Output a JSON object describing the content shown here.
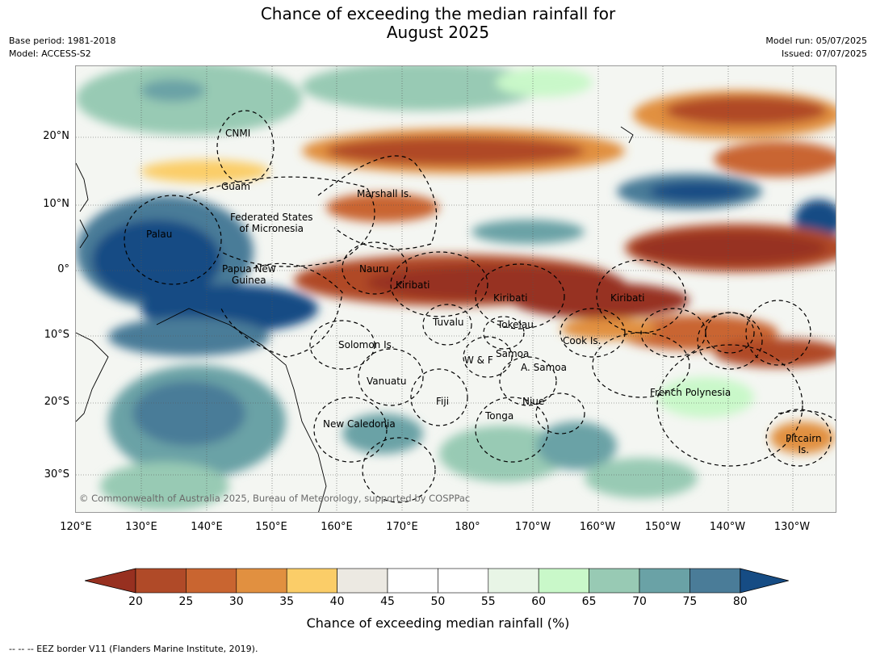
{
  "title_line1": "Chance of exceeding the median rainfall for",
  "title_line2": "August 2025",
  "meta_left": [
    "Base period: 1981-2018",
    "Model: ACCESS-S2"
  ],
  "meta_right": [
    "Model run: 05/07/2025",
    "Issued: 07/07/2025"
  ],
  "lat_labels": [
    "20°N",
    "10°N",
    "0°",
    "10°S",
    "20°S",
    "30°S"
  ],
  "lon_labels": [
    "120°E",
    "130°E",
    "140°E",
    "150°E",
    "160°E",
    "170°E",
    "180°",
    "170°W",
    "160°W",
    "150°W",
    "140°W",
    "130°W"
  ],
  "places": {
    "cnmi": "CNMI",
    "guam": "Guam",
    "marshall": "Marshall Is.",
    "fsm1": "Federated States",
    "fsm2": "of Micronesia",
    "palau": "Palau",
    "png1": "Papua New",
    "png2": "Guinea",
    "nauru": "Nauru",
    "kiribati_w": "Kiribati",
    "kiribati_c": "Kiribati",
    "kiribati_e": "Kiribati",
    "tuvalu": "Tuvalu",
    "tokelau": "Tokelau",
    "cook": "Cook Is.",
    "solomon": "Solomon Is.",
    "wf": "W & F",
    "samoa": "Samoa",
    "asamoa": "A. Samoa",
    "vanuatu": "Vanuatu",
    "fiji": "Fiji",
    "niue": "Niue",
    "tonga": "Tonga",
    "frenchpoly": "French Polynesia",
    "newcal": "New Caledonia",
    "pitcairn1": "Pitcairn",
    "pitcairn2": "Is."
  },
  "credit": "© Commonwealth of Australia 2025, Bureau of Meteorology, supported by COSPPac",
  "colorbar": {
    "ticks": [
      "20",
      "25",
      "30",
      "35",
      "40",
      "45",
      "50",
      "55",
      "60",
      "65",
      "70",
      "75",
      "80"
    ],
    "colors": [
      "#973020",
      "#b04a28",
      "#c96530",
      "#e19040",
      "#fbcd68",
      "#ece9e2",
      "#ffffff",
      "#ffffff",
      "#e8f5e6",
      "#c9f8c9",
      "#98cab4",
      "#6aa2a6",
      "#4a7c98",
      "#164c84"
    ],
    "label": "Chance of exceeding median rainfall (%)"
  },
  "eez_note": "--  --  -- EEZ border V11 (Flanders Marine Institute, 2019)."
}
